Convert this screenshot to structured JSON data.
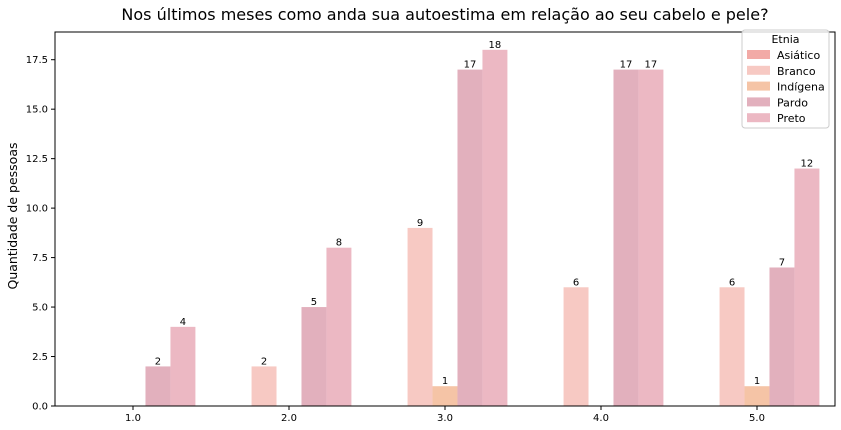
{
  "chart_data": {
    "type": "bar",
    "title": "Nos últimos meses como anda sua autoestima em relação ao seu cabelo e pele?",
    "xlabel": "",
    "ylabel": "Quantidade de pessoas",
    "categories": [
      "1.0",
      "2.0",
      "3.0",
      "4.0",
      "5.0"
    ],
    "ylim": [
      0,
      18.9
    ],
    "yticks": [
      "0.0",
      "2.5",
      "5.0",
      "7.5",
      "10.0",
      "12.5",
      "15.0",
      "17.5"
    ],
    "legend": {
      "title": "Etnia",
      "placement": "top-right"
    },
    "grid": false,
    "series": [
      {
        "name": "Asiático",
        "color": "#f2aaa6",
        "values": [
          0,
          0,
          0,
          0,
          0
        ]
      },
      {
        "name": "Branco",
        "color": "#f7c9c3",
        "values": [
          0,
          2,
          9,
          6,
          6
        ]
      },
      {
        "name": "Indígena",
        "color": "#f5c4a6",
        "values": [
          0,
          0,
          1,
          0,
          1
        ]
      },
      {
        "name": "Pardo",
        "color": "#e2b0bd",
        "values": [
          2,
          5,
          17,
          17,
          7
        ]
      },
      {
        "name": "Preto",
        "color": "#ecb8c3",
        "values": [
          4,
          8,
          18,
          17,
          12
        ]
      }
    ]
  }
}
